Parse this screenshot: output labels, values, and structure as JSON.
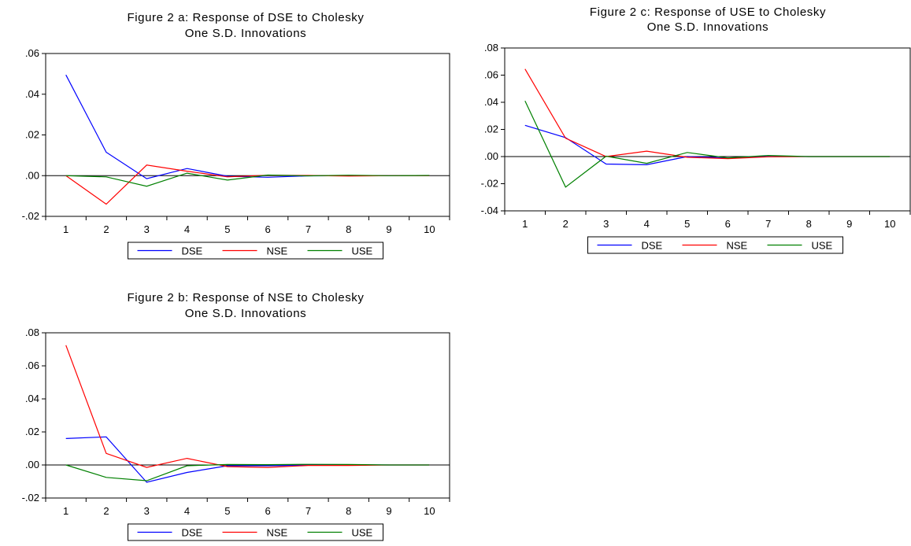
{
  "chart_data": [
    {
      "id": "fig2a",
      "type": "line",
      "title": [
        "Figure 2 a: Response of DSE to Cholesky",
        "One S.D. Innovations"
      ],
      "categories": [
        "1",
        "2",
        "3",
        "4",
        "5",
        "6",
        "7",
        "8",
        "9",
        "10"
      ],
      "ylim": [
        -0.02,
        0.06
      ],
      "yticks": [
        ".06",
        ".04",
        ".02",
        ".00",
        "-.02"
      ],
      "series": [
        {
          "name": "DSE",
          "color": "#0000ff",
          "values": [
            0.0495,
            0.0115,
            -0.0015,
            0.0035,
            -0.0003,
            -0.0008,
            -0.0001,
            0.0,
            0.0,
            0.0
          ]
        },
        {
          "name": "NSE",
          "color": "#ff0000",
          "values": [
            0.0,
            -0.014,
            0.0052,
            0.0022,
            -0.0006,
            0.0002,
            0.0001,
            -0.0002,
            0.0,
            0.0
          ]
        },
        {
          "name": "USE",
          "color": "#008000",
          "values": [
            0.0,
            -0.0006,
            -0.0052,
            0.0012,
            -0.0022,
            0.0003,
            -0.0001,
            0.0002,
            0.0,
            0.0001
          ]
        }
      ]
    },
    {
      "id": "fig2b",
      "type": "line",
      "title": [
        "Figure 2 b: Response of NSE to Cholesky",
        "One S.D. Innovations"
      ],
      "categories": [
        "1",
        "2",
        "3",
        "4",
        "5",
        "6",
        "7",
        "8",
        "9",
        "10"
      ],
      "ylim": [
        -0.02,
        0.08
      ],
      "yticks": [
        ".08",
        ".06",
        ".04",
        ".02",
        ".00",
        "-.02"
      ],
      "series": [
        {
          "name": "DSE",
          "color": "#0000ff",
          "values": [
            0.016,
            0.017,
            -0.0105,
            -0.0045,
            -0.0005,
            -0.0005,
            -0.0001,
            0.0001,
            0.0,
            0.0
          ]
        },
        {
          "name": "NSE",
          "color": "#ff0000",
          "values": [
            0.0725,
            0.007,
            -0.0015,
            0.004,
            -0.001,
            -0.0015,
            -0.0003,
            -0.0003,
            0.0,
            0.0
          ]
        },
        {
          "name": "USE",
          "color": "#008000",
          "values": [
            0.0,
            -0.0075,
            -0.0095,
            -0.0005,
            0.0003,
            0.0002,
            0.0004,
            0.0003,
            0.0,
            0.0
          ]
        }
      ]
    },
    {
      "id": "fig2c",
      "type": "line",
      "title": [
        "Figure 2 c: Response of USE to Cholesky",
        "One S.D. Innovations"
      ],
      "categories": [
        "1",
        "2",
        "3",
        "4",
        "5",
        "6",
        "7",
        "8",
        "9",
        "10"
      ],
      "ylim": [
        -0.04,
        0.08
      ],
      "yticks": [
        ".08",
        ".06",
        ".04",
        ".02",
        ".00",
        "-.02",
        "-.04"
      ],
      "series": [
        {
          "name": "DSE",
          "color": "#0000ff",
          "values": [
            0.023,
            0.014,
            -0.0055,
            -0.006,
            0.0,
            -0.001,
            0.0,
            0.0,
            0.0,
            0.0
          ]
        },
        {
          "name": "NSE",
          "color": "#ff0000",
          "values": [
            0.0645,
            0.0135,
            0.0,
            0.004,
            -0.0005,
            -0.0015,
            -0.0002,
            0.0,
            0.0,
            0.0
          ]
        },
        {
          "name": "USE",
          "color": "#008000",
          "values": [
            0.041,
            -0.0225,
            0.0003,
            -0.005,
            0.003,
            -0.001,
            0.0008,
            0.0,
            0.0,
            0.0
          ]
        }
      ]
    }
  ]
}
